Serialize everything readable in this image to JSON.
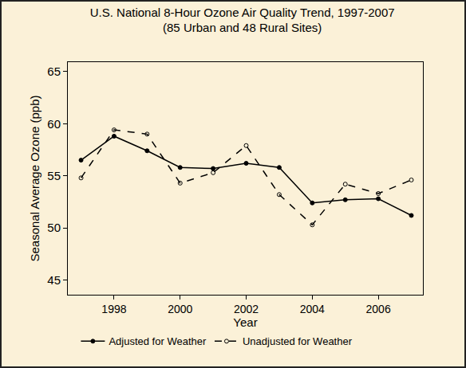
{
  "chart_data": {
    "type": "line",
    "title": "U.S. National 8-Hour Ozone Air Quality Trend, 1997-2007",
    "subtitle": "(85 Urban and 48 Rural Sites)",
    "x_label": "Year",
    "y_label": "Seasonal Average Ozone (ppb)",
    "x": [
      1997,
      1998,
      1999,
      2000,
      2001,
      2002,
      2003,
      2004,
      2005,
      2006,
      2007
    ],
    "series": [
      {
        "name": "Adjusted for Weather",
        "color": "#000000",
        "marker": "circle",
        "line_style": "solid",
        "values": [
          56.5,
          58.8,
          57.4,
          55.8,
          55.7,
          56.2,
          55.8,
          52.4,
          52.7,
          52.8,
          51.2
        ]
      },
      {
        "name": "Unadjusted for Weather",
        "color": "#000000",
        "marker": "circle-open",
        "line_style": "dash",
        "values": [
          54.8,
          59.4,
          59.0,
          54.3,
          55.3,
          57.9,
          53.2,
          50.3,
          54.2,
          53.3,
          54.6
        ]
      }
    ],
    "xlim": [
      1996.6,
      2007.35
    ],
    "xticks": [
      1998,
      2000,
      2002,
      2004,
      2006
    ],
    "ylim": [
      43.6,
      65.9
    ],
    "yticks": [
      45,
      50,
      55,
      60,
      65
    ],
    "grid": false,
    "legend": "bottom"
  }
}
